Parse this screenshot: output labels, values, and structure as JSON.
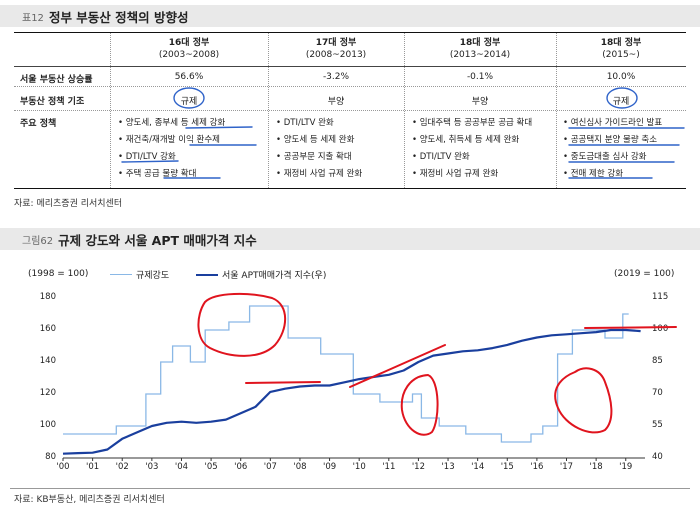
{
  "table": {
    "tag": "표12",
    "title": "정부 부동산 정책의 방향성",
    "columns": [
      {
        "name": "16대 정부",
        "period": "(2003~2008)"
      },
      {
        "name": "17대 정부",
        "period": "(2008~2013)"
      },
      {
        "name": "18대 정부",
        "period": "(2013~2014)"
      },
      {
        "name": "18대 정부",
        "period": "(2015~)"
      }
    ],
    "row_labels": [
      "서울 부동산 상승률",
      "부동산 정책 기조",
      "주요 정책"
    ],
    "growth": [
      "56.6%",
      "-3.2%",
      "-0.1%",
      "10.0%"
    ],
    "stance": [
      "규제",
      "부양",
      "부양",
      "규제"
    ],
    "policies": [
      [
        "양도세, 종부세 등 세제 강화",
        "재건축/재개발 이익 환수제",
        "DTI/LTV 강화",
        "주택 공급 물량 확대"
      ],
      [
        "DTI/LTV 완화",
        "양도세 등 세제 완화",
        "공공부문 지출 확대",
        "재정비 사업 규제 완화"
      ],
      [
        "임대주택 등 공공부문 공급 확대",
        "양도세, 취득세 등 세제 완화",
        "DTI/LTV 완화",
        "재정비 사업 규제 완화"
      ],
      [
        "여신심사 가이드라인 발표",
        "공공택지 분양 물량 축소",
        "중도금대출 심사 강화",
        "전매 제한 강화"
      ]
    ],
    "source": "자료: 메리츠증권 리서치센터"
  },
  "figure": {
    "tag": "그림62",
    "title": "규제 강도와 서울 APT 매매가격 지수",
    "source": "자료: KB부동산, 메리츠증권 리서치센터"
  },
  "chart_data": {
    "type": "line",
    "left_axis_label": "(1998 = 100)",
    "right_axis_label": "(2019 = 100)",
    "left_ylim": [
      80,
      180
    ],
    "left_ticks": [
      80,
      100,
      120,
      140,
      160,
      180
    ],
    "right_ylim": [
      40,
      115
    ],
    "right_ticks": [
      40,
      55,
      70,
      85,
      100,
      115
    ],
    "x_ticks": [
      "'00",
      "'01",
      "'02",
      "'03",
      "'04",
      "'05",
      "'06",
      "'07",
      "'08",
      "'09",
      "'10",
      "'11",
      "'12",
      "'13",
      "'14",
      "'15",
      "'16",
      "'17",
      "'18",
      "'19"
    ],
    "colors": {
      "regulation": "#8ab8e6",
      "price": "#1a3f9e",
      "annotation": "#e0141e"
    },
    "series": [
      {
        "name": "규제강도",
        "axis": "left",
        "points": [
          [
            2000.0,
            95
          ],
          [
            2001.8,
            95
          ],
          [
            2001.8,
            100
          ],
          [
            2002.8,
            100
          ],
          [
            2002.8,
            120
          ],
          [
            2003.3,
            120
          ],
          [
            2003.3,
            140
          ],
          [
            2003.7,
            140
          ],
          [
            2003.7,
            150
          ],
          [
            2004.3,
            150
          ],
          [
            2004.3,
            140
          ],
          [
            2004.8,
            140
          ],
          [
            2004.8,
            160
          ],
          [
            2005.6,
            160
          ],
          [
            2005.6,
            165
          ],
          [
            2006.3,
            165
          ],
          [
            2006.3,
            175
          ],
          [
            2007.6,
            175
          ],
          [
            2007.6,
            155
          ],
          [
            2008.7,
            155
          ],
          [
            2008.7,
            145
          ],
          [
            2009.8,
            145
          ],
          [
            2009.8,
            120
          ],
          [
            2010.7,
            120
          ],
          [
            2010.7,
            115
          ],
          [
            2011.8,
            115
          ],
          [
            2011.8,
            120
          ],
          [
            2012.1,
            120
          ],
          [
            2012.1,
            105
          ],
          [
            2012.7,
            105
          ],
          [
            2012.7,
            100
          ],
          [
            2013.6,
            100
          ],
          [
            2013.6,
            95
          ],
          [
            2014.8,
            95
          ],
          [
            2014.8,
            90
          ],
          [
            2015.8,
            90
          ],
          [
            2015.8,
            95
          ],
          [
            2016.2,
            95
          ],
          [
            2016.2,
            100
          ],
          [
            2016.7,
            100
          ],
          [
            2016.7,
            145
          ],
          [
            2017.2,
            145
          ],
          [
            2017.2,
            160
          ],
          [
            2018.3,
            160
          ],
          [
            2018.3,
            155
          ],
          [
            2018.9,
            155
          ],
          [
            2018.9,
            170
          ],
          [
            2019.1,
            170
          ]
        ]
      },
      {
        "name": "서울 APT매매가격 지수(우)",
        "axis": "right",
        "points": [
          [
            2000.0,
            42
          ],
          [
            2000.5,
            42.3
          ],
          [
            2001.0,
            42.5
          ],
          [
            2001.5,
            44
          ],
          [
            2002.0,
            49
          ],
          [
            2002.5,
            52
          ],
          [
            2003.0,
            55
          ],
          [
            2003.5,
            56.5
          ],
          [
            2004.0,
            57
          ],
          [
            2004.5,
            56.5
          ],
          [
            2005.0,
            57
          ],
          [
            2005.5,
            58
          ],
          [
            2006.0,
            61
          ],
          [
            2006.5,
            64
          ],
          [
            2007.0,
            71
          ],
          [
            2007.5,
            72.5
          ],
          [
            2008.0,
            73.5
          ],
          [
            2008.5,
            74
          ],
          [
            2009.0,
            74
          ],
          [
            2009.5,
            75.5
          ],
          [
            2010.0,
            77
          ],
          [
            2010.5,
            78
          ],
          [
            2011.0,
            79
          ],
          [
            2011.5,
            81
          ],
          [
            2012.0,
            85
          ],
          [
            2012.5,
            88
          ],
          [
            2013.0,
            89
          ],
          [
            2013.5,
            90
          ],
          [
            2014.0,
            90.5
          ],
          [
            2014.5,
            91.5
          ],
          [
            2015.0,
            93
          ],
          [
            2015.5,
            95
          ],
          [
            2016.0,
            96.5
          ],
          [
            2016.5,
            97.5
          ],
          [
            2017.0,
            98
          ],
          [
            2017.5,
            98.5
          ],
          [
            2018.0,
            99
          ],
          [
            2018.5,
            100
          ],
          [
            2019.0,
            100
          ],
          [
            2019.5,
            99.5
          ]
        ]
      }
    ]
  }
}
